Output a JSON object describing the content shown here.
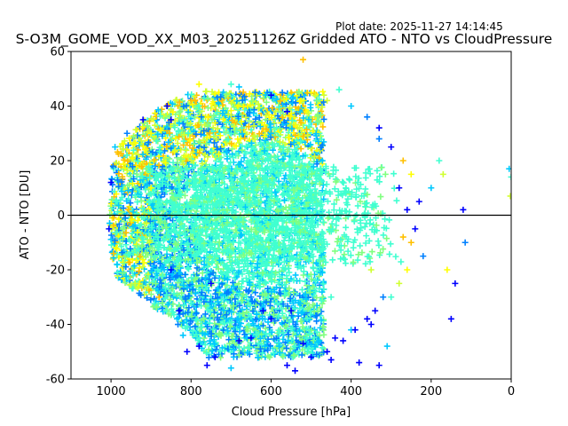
{
  "plot_date": "Plot date: 2025-11-27 14:14:45",
  "chart_data": {
    "type": "scatter",
    "title": "S-O3M_GOME_VOD_XX_M03_20251126Z Gridded ATO - NTO vs CloudPressure",
    "xlabel": "Cloud Pressure [hPa]",
    "ylabel": "ATO - NTO [DU]",
    "xlim": [
      1100,
      0
    ],
    "ylim": [
      -60,
      60
    ],
    "x_inverted": true,
    "xticks": [
      1000,
      800,
      600,
      400,
      200,
      0
    ],
    "yticks": [
      -60,
      -40,
      -20,
      0,
      20,
      40,
      60
    ],
    "marker": "plus",
    "reference_line_y": 0,
    "grid": false,
    "point_colors": [
      "#0000ff",
      "#0080ff",
      "#00c8ff",
      "#40ffd0",
      "#80ff80",
      "#d0ff30",
      "#ffff00",
      "#ffc000"
    ],
    "cloud_outline": [
      [
        990,
        -22
      ],
      [
        960,
        -26
      ],
      [
        900,
        -33
      ],
      [
        850,
        -38
      ],
      [
        800,
        -44
      ],
      [
        760,
        -52
      ],
      [
        700,
        -55
      ],
      [
        600,
        -57
      ],
      [
        520,
        -57
      ],
      [
        450,
        -52
      ],
      [
        400,
        -46
      ],
      [
        360,
        -40
      ],
      [
        320,
        -34
      ],
      [
        290,
        -28
      ],
      [
        265,
        -20
      ],
      [
        250,
        -10
      ],
      [
        245,
        0
      ],
      [
        255,
        10
      ],
      [
        270,
        20
      ],
      [
        300,
        30
      ],
      [
        360,
        38
      ],
      [
        430,
        45
      ],
      [
        520,
        47
      ],
      [
        620,
        46
      ],
      [
        720,
        47
      ],
      [
        800,
        45
      ],
      [
        870,
        40
      ],
      [
        940,
        32
      ],
      [
        980,
        25
      ],
      [
        1000,
        15
      ],
      [
        1005,
        0
      ],
      [
        1002,
        -12
      ]
    ],
    "sample_points": [
      [
        1000,
        12
      ],
      [
        1005,
        -5
      ],
      [
        995,
        18
      ],
      [
        985,
        -18
      ],
      [
        960,
        22
      ],
      [
        940,
        -25
      ],
      [
        900,
        30
      ],
      [
        880,
        -30
      ],
      [
        850,
        35
      ],
      [
        830,
        -35
      ],
      [
        820,
        -44
      ],
      [
        810,
        -50
      ],
      [
        780,
        -48
      ],
      [
        760,
        -55
      ],
      [
        740,
        -52
      ],
      [
        700,
        -56
      ],
      [
        680,
        -46
      ],
      [
        650,
        -45
      ],
      [
        620,
        -35
      ],
      [
        600,
        -38
      ],
      [
        580,
        -48
      ],
      [
        560,
        -55
      ],
      [
        540,
        -57
      ],
      [
        520,
        -47
      ],
      [
        500,
        -52
      ],
      [
        480,
        -46
      ],
      [
        460,
        -50
      ],
      [
        450,
        -53
      ],
      [
        440,
        -45
      ],
      [
        420,
        -46
      ],
      [
        400,
        -42
      ],
      [
        380,
        -54
      ],
      [
        360,
        -38
      ],
      [
        340,
        -35
      ],
      [
        320,
        -30
      ],
      [
        310,
        -48
      ],
      [
        300,
        -30
      ],
      [
        280,
        -25
      ],
      [
        260,
        -20
      ],
      [
        250,
        -10
      ],
      [
        240,
        -5
      ],
      [
        230,
        5
      ],
      [
        220,
        -15
      ],
      [
        200,
        10
      ],
      [
        180,
        20
      ],
      [
        170,
        15
      ],
      [
        160,
        -20
      ],
      [
        150,
        -38
      ],
      [
        140,
        -25
      ],
      [
        120,
        2
      ],
      [
        115,
        -10
      ],
      [
        5,
        17
      ],
      [
        0,
        14
      ],
      [
        2,
        7
      ],
      [
        250,
        15
      ],
      [
        270,
        20
      ],
      [
        300,
        25
      ],
      [
        330,
        32
      ],
      [
        360,
        36
      ],
      [
        400,
        40
      ],
      [
        430,
        46
      ],
      [
        460,
        42
      ],
      [
        500,
        45
      ],
      [
        520,
        57
      ],
      [
        560,
        38
      ],
      [
        600,
        44
      ],
      [
        640,
        45
      ],
      [
        680,
        47
      ],
      [
        700,
        48
      ],
      [
        740,
        40
      ],
      [
        780,
        48
      ],
      [
        800,
        42
      ],
      [
        860,
        40
      ],
      [
        920,
        35
      ],
      [
        960,
        30
      ],
      [
        990,
        25
      ],
      [
        330,
        -55
      ],
      [
        350,
        -40
      ],
      [
        390,
        -42
      ],
      [
        270,
        -8
      ],
      [
        260,
        2
      ],
      [
        280,
        10
      ],
      [
        330,
        28
      ],
      [
        600,
        30
      ],
      [
        700,
        30
      ],
      [
        800,
        20
      ],
      [
        900,
        10
      ],
      [
        950,
        0
      ],
      [
        850,
        -20
      ],
      [
        750,
        -25
      ],
      [
        650,
        -30
      ],
      [
        550,
        -35
      ],
      [
        450,
        -30
      ],
      [
        350,
        -20
      ]
    ]
  }
}
